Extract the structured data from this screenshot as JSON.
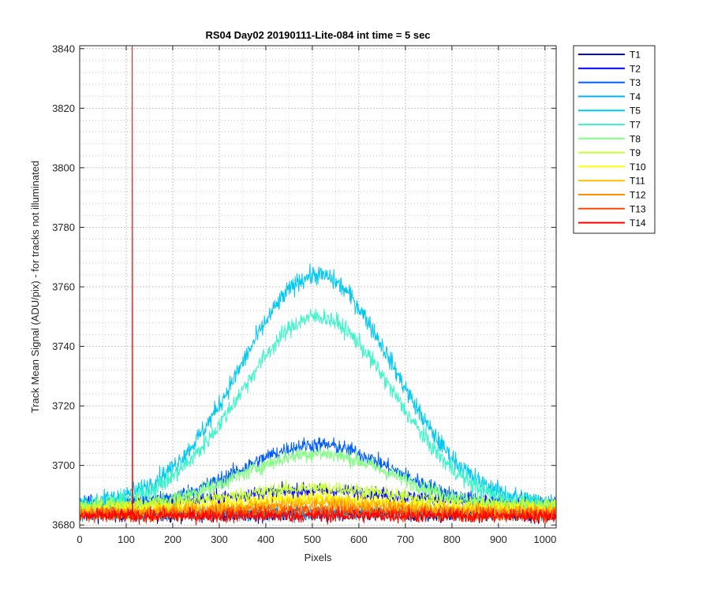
{
  "chart_data": {
    "type": "line",
    "title": "RS04 Day02 20190111-Lite-084 int time = 5 sec",
    "xlabel": "Pixels",
    "ylabel": "Track Mean Signal (ADU/pix) - for tracks not illuminated",
    "xlim": [
      0,
      1024
    ],
    "ylim": [
      3679,
      3841
    ],
    "xticks": [
      0,
      100,
      200,
      300,
      400,
      500,
      600,
      700,
      800,
      900,
      1000
    ],
    "yticks": [
      3680,
      3700,
      3720,
      3740,
      3760,
      3780,
      3800,
      3820,
      3840
    ],
    "grid": true,
    "minor_grid": true,
    "legend_position": "outside-top-right",
    "series": [
      {
        "name": "T1",
        "color": "#00008f",
        "baseline": 3683.5,
        "peak": 0,
        "noise": 1.2
      },
      {
        "name": "T2",
        "color": "#0000ff",
        "baseline": 3687.5,
        "peak": 4,
        "noise": 1.2
      },
      {
        "name": "T3",
        "color": "#005bff",
        "baseline": 3686.0,
        "peak": 21,
        "noise": 1.3
      },
      {
        "name": "T4",
        "color": "#00b3ff",
        "baseline": 3684.0,
        "peak": 0,
        "noise": 1.2
      },
      {
        "name": "T5",
        "color": "#00c8f0",
        "baseline": 3687.0,
        "peak": 77,
        "noise": 1.6
      },
      {
        "name": "T7",
        "color": "#3cf5c8",
        "baseline": 3686.0,
        "peak": 64,
        "noise": 1.5
      },
      {
        "name": "T8",
        "color": "#80ff80",
        "baseline": 3686.0,
        "peak": 18,
        "noise": 1.3
      },
      {
        "name": "T9",
        "color": "#c8ff37",
        "baseline": 3686.5,
        "peak": 6,
        "noise": 1.2
      },
      {
        "name": "T10",
        "color": "#ffff00",
        "baseline": 3685.0,
        "peak": 4,
        "noise": 1.2
      },
      {
        "name": "T11",
        "color": "#ffbf00",
        "baseline": 3684.5,
        "peak": 3,
        "noise": 1.2
      },
      {
        "name": "T12",
        "color": "#ff8c00",
        "baseline": 3684.0,
        "peak": 2,
        "noise": 1.2
      },
      {
        "name": "T13",
        "color": "#ff4500",
        "baseline": 3683.5,
        "peak": 1,
        "noise": 1.2
      },
      {
        "name": "T14",
        "color": "#ff0000",
        "baseline": 3683.0,
        "peak": 0,
        "noise": 1.1,
        "spike_x": 113,
        "spike_y": 3841
      }
    ],
    "peak_center": 510,
    "peak_width": 230
  }
}
